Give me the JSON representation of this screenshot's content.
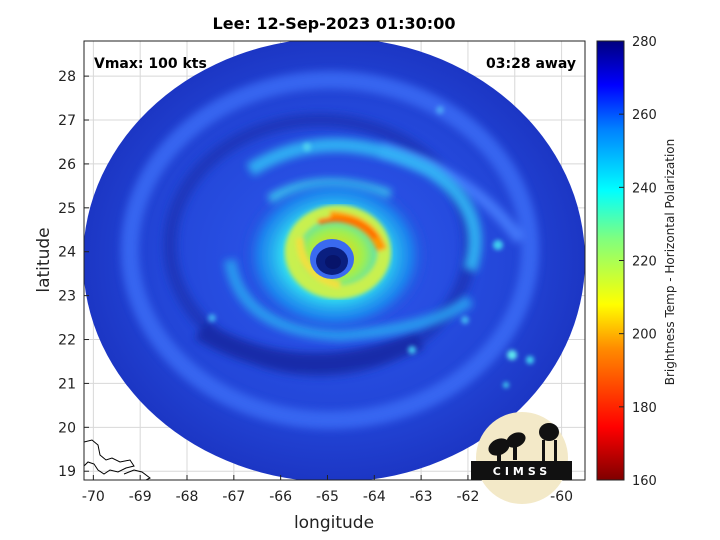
{
  "title": "Lee: 12-Sep-2023 01:30:00",
  "annotations": {
    "vmax": "Vmax: 100 kts",
    "away": "03:28 away"
  },
  "axes": {
    "xlabel": "longitude",
    "ylabel": "latitude",
    "xticks": [
      "-70",
      "-69",
      "-68",
      "-67",
      "-66",
      "-65",
      "-64",
      "-63",
      "-62",
      "-61",
      "-60"
    ],
    "yticks": [
      "19",
      "20",
      "21",
      "22",
      "23",
      "24",
      "25",
      "26",
      "27",
      "28"
    ],
    "xlim": [
      -70.2,
      -59.5
    ],
    "ylim": [
      18.8,
      28.8
    ],
    "grid": true
  },
  "colorbar": {
    "label": "Brightness Temp - Horizontal Polarization",
    "ticks": [
      "160",
      "180",
      "200",
      "220",
      "240",
      "260",
      "280"
    ],
    "range": [
      160,
      280
    ],
    "colormap": "jet"
  },
  "storm": {
    "eye_lon": -64.7,
    "eye_lat": 23.8,
    "swath_center_lon": -64.9,
    "swath_center_lat": 23.9
  },
  "logo": {
    "text": "CIMSS"
  },
  "colors": {
    "background_field": "#1f3fcf",
    "eyewall": "#f5b800",
    "eye": "#0a1f80"
  }
}
